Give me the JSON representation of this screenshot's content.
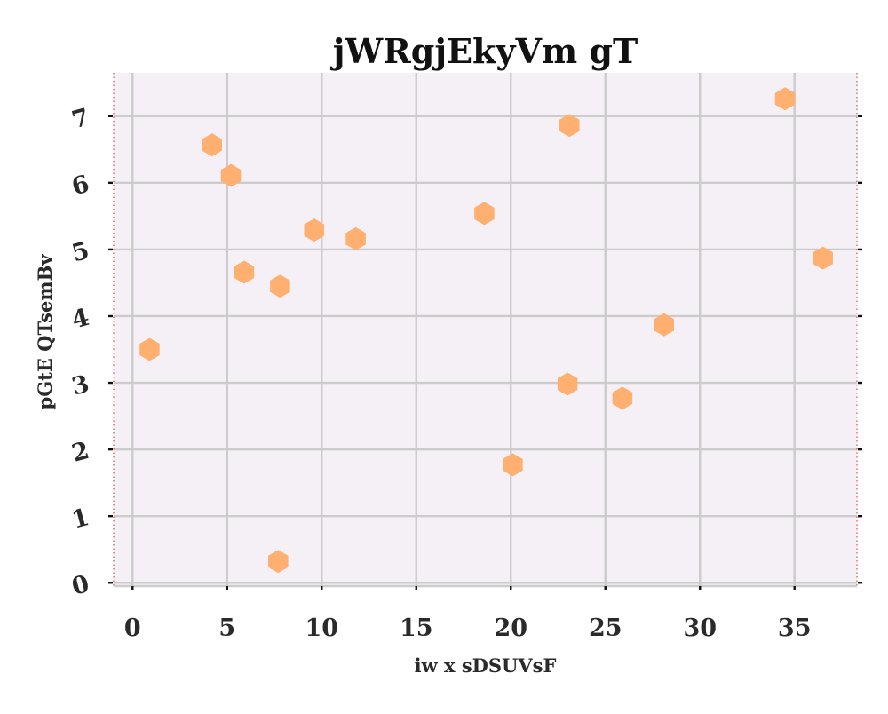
{
  "chart_data": {
    "type": "scatter",
    "title": "jWRgjEkyVm gT",
    "xlabel": "iw x sDSUVsF",
    "ylabel": "pGtE QTsemBv",
    "xlim": [
      -1,
      38.3
    ],
    "ylim": [
      -0.05,
      7.65
    ],
    "xticks": [
      0,
      5,
      10,
      15,
      20,
      25,
      30,
      35
    ],
    "yticks": [
      0,
      1,
      2,
      3,
      4,
      5,
      6,
      7
    ],
    "grid": true,
    "marker": "hexagon",
    "colors": {
      "marker": "#ffb070",
      "plot_background": "#f5f0f6",
      "grid": "#cccccc",
      "spine": "#e8626a"
    },
    "series": [
      {
        "x": [
          0.9,
          4.2,
          5.2,
          5.9,
          7.8,
          7.7,
          9.6,
          11.8,
          18.6,
          20.1,
          23.0,
          23.1,
          25.9,
          28.1,
          34.5,
          36.5
        ],
        "y": [
          3.5,
          6.57,
          6.11,
          4.66,
          4.45,
          0.32,
          5.29,
          5.16,
          5.54,
          1.77,
          2.98,
          6.86,
          2.77,
          3.87,
          7.26,
          4.87
        ]
      }
    ]
  }
}
